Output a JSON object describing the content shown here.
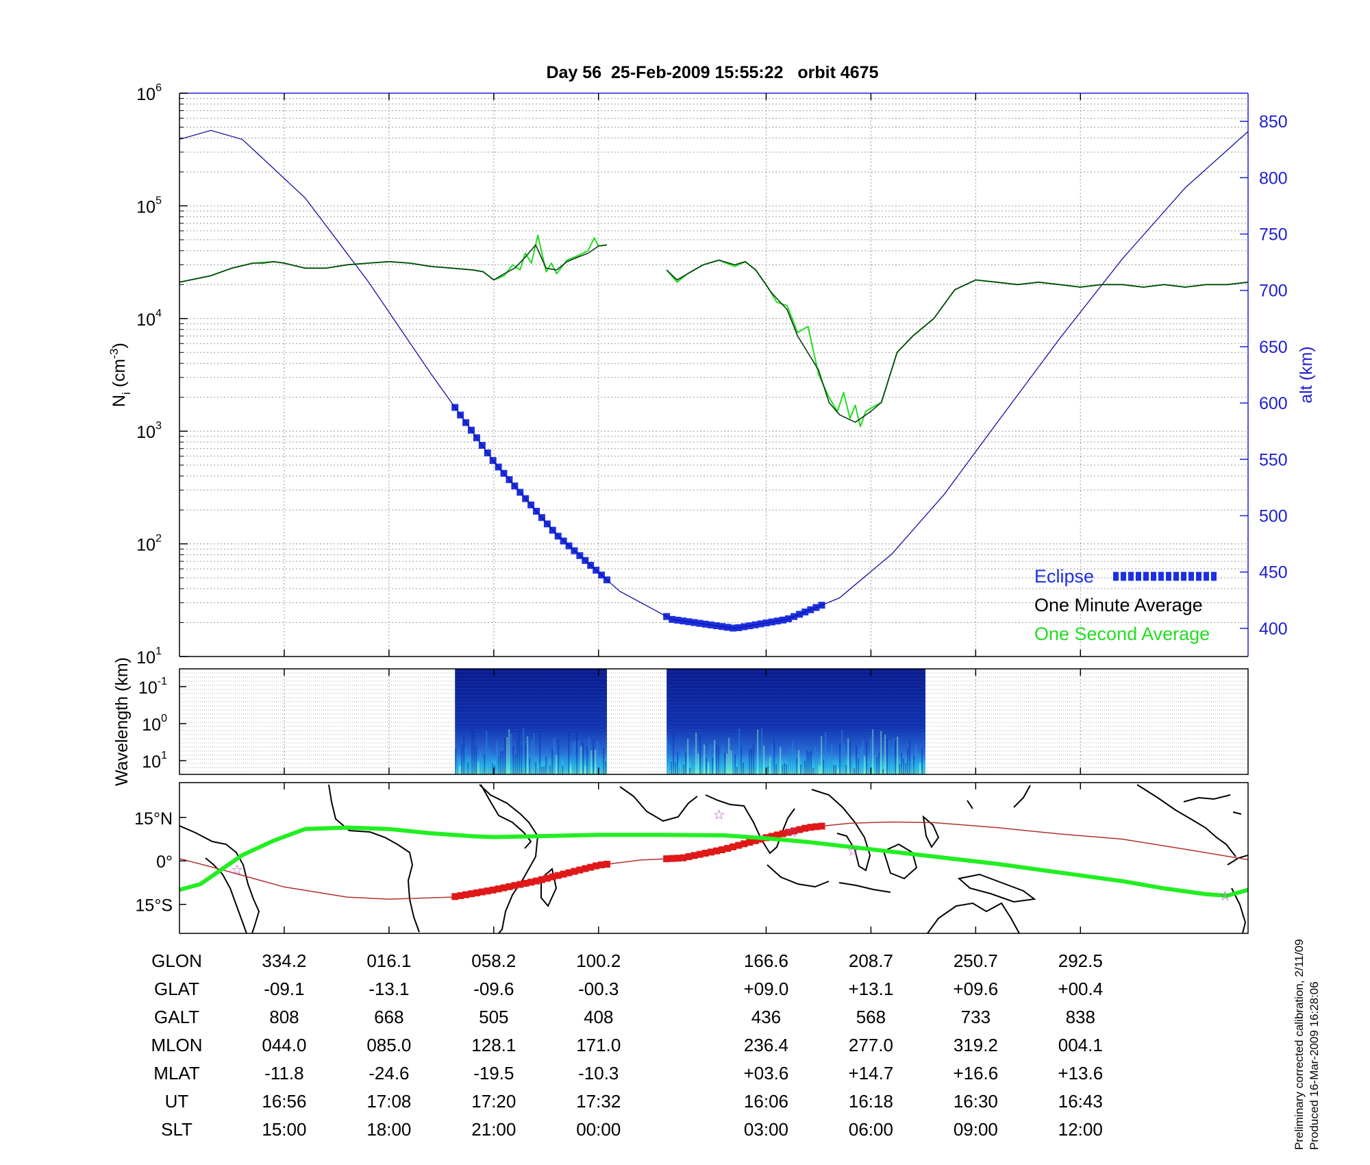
{
  "title": "Day 56  25-Feb-2009 15:55:22   orbit 4675",
  "footnote": {
    "line1": "Preliminary corrected calibration, 2/11/09",
    "line2": "Produced 16-Mar-2009 16:28:06"
  },
  "colors": {
    "altitude": "#1010a0",
    "axis_right": "#2020d0",
    "eclipse": "#1c30e0",
    "minute_avg": "#0a3a10",
    "second_avg": "#22dd22",
    "spectrogram_bg": "#0a1f9a",
    "ground_track": "#b03030",
    "track_eclipse": "#e01818",
    "magnetic_equator": "#22ee22",
    "stars": "#b040c0"
  },
  "legend": {
    "eclipse": "Eclipse",
    "minute": "One Minute Average",
    "second": "One Second Average"
  },
  "chart_data": [
    {
      "type": "line",
      "name": "density-altitude",
      "ylabel_left": "N",
      "ylabel_left_sub": "i",
      "ylabel_left_unit_pre": " (cm",
      "ylabel_left_unit_exp": "-3",
      "ylabel_left_unit_post": ")",
      "ylabel_right": "alt (km)",
      "yscale_left": "log",
      "ylim_left": [
        10,
        1000000
      ],
      "ylim_right": [
        375,
        875
      ],
      "x_range_min": [
        0,
        102
      ],
      "grid": true,
      "yticks_left": [
        {
          "base": "10",
          "exp": "1",
          "value": 10
        },
        {
          "base": "10",
          "exp": "2",
          "value": 100
        },
        {
          "base": "10",
          "exp": "3",
          "value": 1000
        },
        {
          "base": "10",
          "exp": "4",
          "value": 10000
        },
        {
          "base": "10",
          "exp": "5",
          "value": 100000
        },
        {
          "base": "10",
          "exp": "6",
          "value": 1000000
        }
      ],
      "yticks_right": [
        "400",
        "450",
        "500",
        "550",
        "600",
        "650",
        "700",
        "750",
        "800",
        "850"
      ],
      "altitude_km": {
        "x": [
          0,
          3,
          6,
          12,
          18,
          24,
          30,
          36,
          42,
          47,
          53,
          58,
          63,
          68,
          73,
          78,
          84,
          90,
          96,
          102
        ],
        "y": [
          834,
          842,
          834,
          782,
          708,
          626,
          548,
          483,
          433,
          408,
          400,
          408,
          427,
          466,
          519,
          582,
          657,
          728,
          791,
          841
        ]
      },
      "eclipse_segments": [
        {
          "x_start": 26.3,
          "x_end": 40.8
        },
        {
          "x_start": 46.5,
          "x_end": 61.3
        }
      ],
      "minute_average": {
        "segments": [
          {
            "x": [
              0,
              3,
              5,
              7,
              8,
              9,
              10,
              12,
              14,
              16,
              18,
              20,
              22,
              24,
              26,
              28,
              29,
              30,
              31,
              32,
              33,
              34,
              35,
              36,
              37,
              38,
              39,
              40,
              40.8
            ],
            "y": [
              21000,
              24000,
              28000,
              31000,
              31000,
              32000,
              31000,
              28000,
              28000,
              30000,
              31000,
              32000,
              31000,
              29000,
              28000,
              27000,
              26000,
              22000,
              25000,
              28000,
              35000,
              45000,
              28000,
              27000,
              32000,
              35000,
              38000,
              44000,
              45000
            ]
          },
          {
            "x": [
              46.5,
              47.5,
              48.5,
              50,
              51.5,
              53,
              54,
              55,
              56.5,
              58,
              59,
              61,
              62,
              63,
              64.5,
              66,
              67,
              68.5,
              70,
              72,
              74,
              76,
              78,
              80,
              82,
              84,
              86,
              88,
              90,
              92,
              94,
              96,
              98,
              100,
              102
            ],
            "y": [
              27000,
              22000,
              25000,
              30000,
              33000,
              30000,
              32000,
              27000,
              17000,
              12000,
              7000,
              3500,
              1800,
              1400,
              1200,
              1500,
              1800,
              5000,
              7000,
              10000,
              18000,
              22000,
              21000,
              20000,
              21000,
              20000,
              19000,
              20000,
              20000,
              19000,
              20000,
              19000,
              20000,
              20000,
              21000
            ]
          }
        ]
      },
      "second_average": {
        "segments": [
          {
            "x": [
              0,
              3,
              5,
              7,
              9,
              10,
              12,
              14,
              16,
              18,
              20,
              22,
              24,
              26,
              28,
              29,
              30,
              31,
              31.8,
              32.5,
              33,
              33.6,
              34.2,
              35,
              35.5,
              36,
              37,
              38,
              39,
              39.6,
              40,
              40.8
            ],
            "y": [
              21000,
              24000,
              28000,
              31000,
              32000,
              31000,
              28000,
              28000,
              30000,
              31000,
              32000,
              31000,
              29000,
              28000,
              27000,
              26000,
              22000,
              24000,
              30000,
              27000,
              38000,
              31000,
              55000,
              26000,
              31000,
              25000,
              33000,
              36000,
              40000,
              52000,
              44000,
              45000
            ]
          },
          {
            "x": [
              46.5,
              47.5,
              48.5,
              50,
              51.5,
              53,
              54,
              55,
              56,
              57,
              58,
              59,
              60,
              61,
              62,
              62.8,
              63.4,
              64,
              64.5,
              65,
              65.5,
              66,
              67,
              68.5,
              70,
              72,
              74,
              76,
              78,
              80,
              82,
              84,
              86,
              88,
              90,
              92,
              94,
              96,
              98,
              100,
              102
            ],
            "y": [
              27000,
              21000,
              25000,
              30000,
              33000,
              29000,
              32000,
              27000,
              20000,
              14000,
              13000,
              7500,
              8500,
              3200,
              2000,
              1500,
              2200,
              1300,
              1700,
              1100,
              1500,
              1600,
              1800,
              5000,
              7000,
              10000,
              18000,
              22000,
              21000,
              20000,
              21000,
              20000,
              19000,
              20000,
              20000,
              19000,
              20000,
              19000,
              20000,
              20000,
              21000
            ]
          }
        ]
      }
    },
    {
      "type": "heatmap",
      "name": "wavelength-spectrogram",
      "ylabel": "Wavelength (km)",
      "yticks": [
        {
          "base": "10",
          "exp": "-1"
        },
        {
          "base": "10",
          "exp": "0"
        },
        {
          "base": "10",
          "exp": "1"
        }
      ],
      "data_x_ranges": [
        {
          "x_start": 26.3,
          "x_end": 40.8
        },
        {
          "x_start": 46.5,
          "x_end": 71.2
        }
      ]
    },
    {
      "type": "line",
      "name": "ground-track-map",
      "yticks": [
        "15°N",
        "0°",
        "15°S"
      ],
      "ylim_deg": [
        -25,
        27
      ],
      "x_range_min": [
        0,
        102
      ],
      "ground_track_lat": {
        "x": [
          0,
          4,
          10,
          16,
          20,
          26,
          30,
          34,
          40,
          44,
          48,
          52,
          56,
          60,
          64,
          68,
          72,
          78,
          84,
          90,
          96,
          102
        ],
        "y": [
          0.8,
          -3,
          -9,
          -12.5,
          -13.2,
          -12.5,
          -10,
          -7,
          -1.5,
          0.3,
          1,
          4,
          8,
          11.5,
          13,
          13.4,
          13.2,
          11.5,
          9.3,
          7.5,
          4,
          0.4
        ]
      },
      "track_eclipse_segments": [
        {
          "x_start": 26.3,
          "x_end": 40.8
        },
        {
          "x_start": 46.5,
          "x_end": 61.3
        }
      ],
      "magnetic_equator_lat": {
        "x": [
          0,
          2,
          4,
          6,
          9,
          12,
          16,
          20,
          24,
          28,
          30,
          34,
          40,
          46,
          52,
          56,
          60,
          66,
          72,
          78,
          84,
          90,
          94,
          98,
          100,
          102
        ],
        "y": [
          -10,
          -8,
          -3,
          2,
          7,
          11,
          11.5,
          11,
          9.5,
          8.5,
          8.2,
          8.5,
          9,
          9,
          8.8,
          7.8,
          6.5,
          4,
          1.5,
          -1,
          -4,
          -7,
          -9.5,
          -11.5,
          -12,
          -10
        ]
      },
      "stars": [
        {
          "x": 5.5,
          "y": -3
        },
        {
          "x": 51.5,
          "y": 16
        },
        {
          "x": 58.5,
          "y": 10
        },
        {
          "x": 64.3,
          "y": 3.5
        },
        {
          "x": 99.8,
          "y": -12
        }
      ]
    }
  ],
  "ephemeris": {
    "row_labels": [
      "GLON",
      "GLAT",
      "GALT",
      "MLON",
      "MLAT",
      "UT",
      "SLT"
    ],
    "columns": [
      {
        "x": 10,
        "values": [
          "334.2",
          "-09.1",
          "808",
          "044.0",
          "-11.8",
          "16:56",
          "15:00"
        ]
      },
      {
        "x": 20,
        "values": [
          "016.1",
          "-13.1",
          "668",
          "085.0",
          "-24.6",
          "17:08",
          "18:00"
        ]
      },
      {
        "x": 30,
        "values": [
          "058.2",
          "-09.6",
          "505",
          "128.1",
          "-19.5",
          "17:20",
          "21:00"
        ]
      },
      {
        "x": 40,
        "values": [
          "100.2",
          "-00.3",
          "408",
          "171.0",
          "-10.3",
          "17:32",
          "00:00"
        ]
      },
      {
        "x": 56,
        "values": [
          "166.6",
          "+09.0",
          "436",
          "236.4",
          "+03.6",
          "16:06",
          "03:00"
        ]
      },
      {
        "x": 66,
        "values": [
          "208.7",
          "+13.1",
          "568",
          "277.0",
          "+14.7",
          "16:18",
          "06:00"
        ]
      },
      {
        "x": 76,
        "values": [
          "250.7",
          "+09.6",
          "733",
          "319.2",
          "+16.6",
          "16:30",
          "09:00"
        ]
      },
      {
        "x": 86,
        "values": [
          "292.5",
          "+00.4",
          "838",
          "004.1",
          "+13.6",
          "16:43",
          "12:00"
        ]
      }
    ]
  }
}
